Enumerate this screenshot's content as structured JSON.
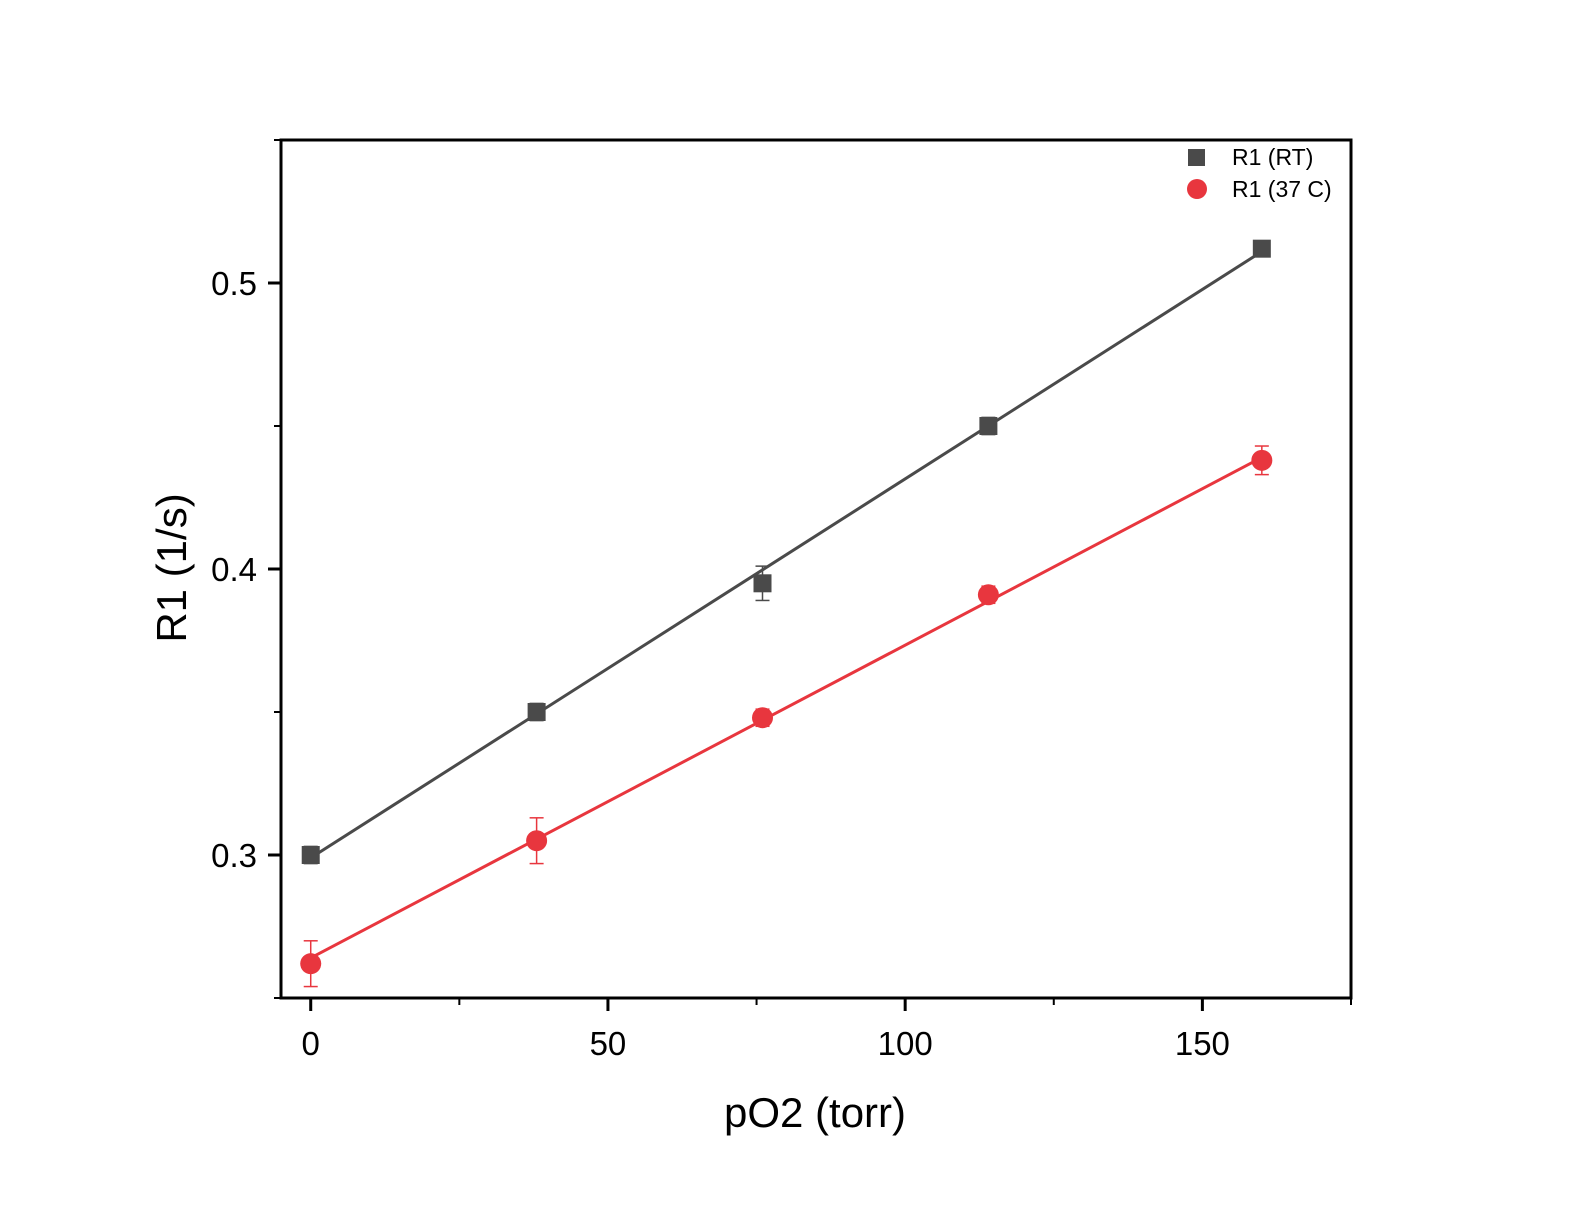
{
  "chart_data": {
    "type": "scatter",
    "title": "",
    "xlabel": "pO2 (torr)",
    "ylabel": "R1 (1/s)",
    "xlim": [
      -5,
      175
    ],
    "ylim": [
      0.25,
      0.55
    ],
    "x_major_ticks": [
      0,
      50,
      100,
      150
    ],
    "x_minor_ticks": [
      25,
      75,
      125,
      175
    ],
    "x_tick_labels": [
      "0",
      "50",
      "100",
      "150"
    ],
    "y_major_ticks": [
      0.3,
      0.4,
      0.5
    ],
    "y_minor_ticks": [
      0.25,
      0.35,
      0.45,
      0.55
    ],
    "y_tick_labels": [
      "0.3",
      "0.4",
      "0.5"
    ],
    "grid": false,
    "legend_position": "top-right",
    "series": [
      {
        "name": "R1 (RT)",
        "marker": "square",
        "color": "#4a4a4a",
        "x": [
          0,
          38,
          76,
          114,
          160
        ],
        "y": [
          0.3,
          0.35,
          0.395,
          0.45,
          0.512
        ],
        "yerr": [
          0.003,
          0.003,
          0.006,
          0.003,
          0.002
        ],
        "fit": {
          "x": [
            0,
            160
          ],
          "y": [
            0.299,
            0.511
          ]
        }
      },
      {
        "name": "R1 (37 C)",
        "marker": "circle",
        "color": "#e8363e",
        "x": [
          0,
          38,
          76,
          114,
          160
        ],
        "y": [
          0.262,
          0.305,
          0.348,
          0.391,
          0.438
        ],
        "yerr": [
          0.008,
          0.008,
          0.003,
          0.003,
          0.005
        ],
        "fit": {
          "x": [
            0,
            160
          ],
          "y": [
            0.264,
            0.439
          ]
        }
      }
    ]
  }
}
